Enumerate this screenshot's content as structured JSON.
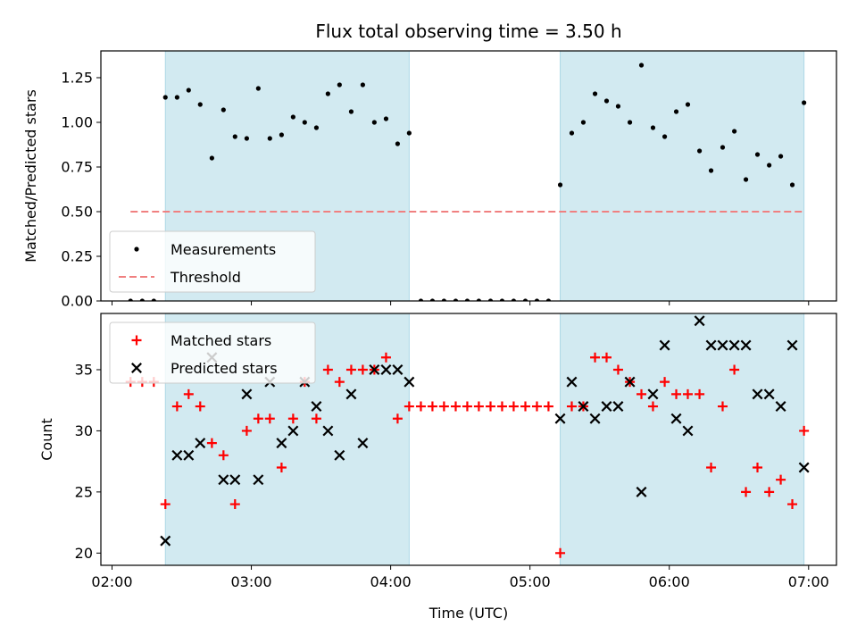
{
  "chart_data": {
    "type": "scatter",
    "title": "Flux total observing time = 3.50 h",
    "xlabel": "Time (UTC)",
    "x_ticks": [
      "02:00",
      "03:00",
      "04:00",
      "05:00",
      "06:00",
      "07:00"
    ],
    "xlim_hours": [
      1.92,
      7.2
    ],
    "shaded_intervals": [
      [
        2.383,
        4.133
      ],
      [
        5.217,
        6.967
      ]
    ],
    "colors": {
      "shade": "#add8e6",
      "matched": "#ff0000",
      "predicted": "#000000",
      "threshold": "#f08080",
      "measurements": "#000000"
    },
    "panels": [
      {
        "ylabel": "Matched/Predicted stars",
        "ylim": [
          0,
          1.4
        ],
        "y_ticks": [
          "0.00",
          "0.25",
          "0.50",
          "0.75",
          "1.00",
          "1.25"
        ],
        "legend_position": "lower-left",
        "series": [
          {
            "name": "Measurements",
            "marker": "dot",
            "x": [
              2.133,
              2.217,
              2.3,
              2.383,
              2.467,
              2.55,
              2.633,
              2.717,
              2.8,
              2.883,
              2.967,
              3.05,
              3.133,
              3.217,
              3.3,
              3.383,
              3.467,
              3.55,
              3.633,
              3.717,
              3.8,
              3.883,
              3.967,
              4.05,
              4.133,
              4.217,
              4.3,
              4.383,
              4.467,
              4.55,
              4.633,
              4.717,
              4.8,
              4.883,
              4.967,
              5.05,
              5.133,
              5.217,
              5.3,
              5.383,
              5.467,
              5.55,
              5.633,
              5.717,
              5.8,
              5.883,
              5.967,
              6.05,
              6.133,
              6.217,
              6.3,
              6.383,
              6.467,
              6.55,
              6.633,
              6.717,
              6.8,
              6.883,
              6.967
            ],
            "y": [
              0,
              0,
              0,
              1.14,
              1.14,
              1.18,
              1.1,
              0.8,
              1.07,
              0.92,
              0.91,
              1.19,
              0.91,
              0.93,
              1.03,
              1.0,
              0.97,
              1.16,
              1.21,
              1.06,
              1.21,
              1.0,
              1.02,
              0.88,
              0.94,
              0,
              0,
              0,
              0,
              0,
              0,
              0,
              0,
              0,
              0,
              0,
              0,
              0.65,
              0.94,
              1.0,
              1.16,
              1.12,
              1.09,
              1.0,
              1.32,
              0.97,
              0.92,
              1.06,
              1.1,
              0.84,
              0.73,
              0.86,
              0.95,
              0.68,
              0.82,
              0.76,
              0.81,
              0.65,
              1.11
            ]
          },
          {
            "name": "Threshold",
            "marker": "dashed-line",
            "x": [
              2.133,
              6.967
            ],
            "y": [
              0.5,
              0.5
            ]
          }
        ]
      },
      {
        "ylabel": "Count",
        "ylim": [
          19,
          39.6
        ],
        "y_ticks": [
          "20",
          "25",
          "30",
          "35"
        ],
        "legend_position": "top-left",
        "series": [
          {
            "name": "Matched stars",
            "marker": "plus",
            "x": [
              2.133,
              2.217,
              2.3,
              2.383,
              2.467,
              2.55,
              2.633,
              2.717,
              2.8,
              2.883,
              2.967,
              3.05,
              3.133,
              3.217,
              3.3,
              3.383,
              3.467,
              3.55,
              3.633,
              3.717,
              3.8,
              3.883,
              3.967,
              4.05,
              4.133,
              4.217,
              4.3,
              4.383,
              4.467,
              4.55,
              4.633,
              4.717,
              4.8,
              4.883,
              4.967,
              5.05,
              5.133,
              5.217,
              5.3,
              5.383,
              5.467,
              5.55,
              5.633,
              5.717,
              5.8,
              5.883,
              5.967,
              6.05,
              6.133,
              6.217,
              6.3,
              6.383,
              6.467,
              6.55,
              6.633,
              6.717,
              6.8,
              6.883,
              6.967
            ],
            "y": [
              34,
              34,
              34,
              24,
              32,
              33,
              32,
              29,
              28,
              24,
              30,
              31,
              31,
              27,
              31,
              34,
              31,
              35,
              34,
              35,
              35,
              35,
              36,
              31,
              32,
              32,
              32,
              32,
              32,
              32,
              32,
              32,
              32,
              32,
              32,
              32,
              32,
              20,
              32,
              32,
              36,
              36,
              35,
              34,
              33,
              32,
              34,
              33,
              33,
              33,
              27,
              32,
              35,
              25,
              27,
              25,
              26,
              24,
              30
            ]
          },
          {
            "name": "Predicted stars",
            "marker": "x",
            "x": [
              2.383,
              2.467,
              2.55,
              2.633,
              2.717,
              2.8,
              2.883,
              2.967,
              3.05,
              3.133,
              3.217,
              3.3,
              3.383,
              3.467,
              3.55,
              3.633,
              3.717,
              3.8,
              3.883,
              3.967,
              4.05,
              4.133,
              5.217,
              5.3,
              5.383,
              5.467,
              5.55,
              5.633,
              5.717,
              5.8,
              5.883,
              5.967,
              6.05,
              6.133,
              6.217,
              6.3,
              6.383,
              6.467,
              6.55,
              6.633,
              6.717,
              6.8,
              6.883,
              6.967
            ],
            "y": [
              21,
              28,
              28,
              29,
              36,
              26,
              26,
              33,
              26,
              34,
              29,
              30,
              34,
              32,
              30,
              28,
              33,
              29,
              35,
              35,
              35,
              34,
              31,
              34,
              32,
              31,
              32,
              32,
              34,
              25,
              33,
              37,
              31,
              30,
              39,
              37,
              37,
              37,
              37,
              33,
              33,
              32,
              37,
              27
            ]
          }
        ]
      }
    ]
  }
}
